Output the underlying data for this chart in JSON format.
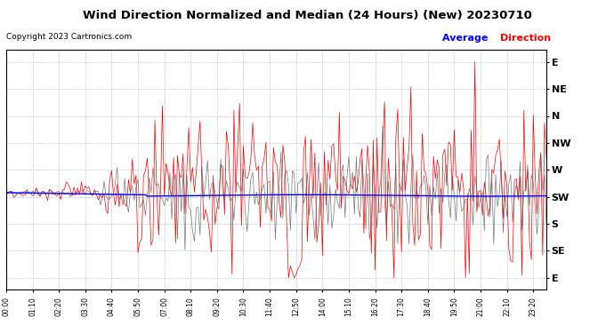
{
  "title": "Wind Direction Normalized and Median (24 Hours) (New) 20230710",
  "copyright": "Copyright 2023 Cartronics.com",
  "background_color": "#ffffff",
  "plot_bg_color": "#ffffff",
  "grid_color": "#aaaaaa",
  "title_fontsize": 9.5,
  "ytick_labels": [
    "E",
    "NE",
    "N",
    "NW",
    "W",
    "SW",
    "S",
    "SE",
    "E"
  ],
  "ytick_values": [
    0,
    45,
    90,
    135,
    180,
    225,
    270,
    315,
    360
  ],
  "ylim": [
    -20,
    380
  ],
  "n_points": 288,
  "red_line_color": "#ff0000",
  "blue_line_color": "#0000ff",
  "dark_line_color": "#555555",
  "x_tick_labels": [
    "00:00",
    "01:10",
    "02:20",
    "03:30",
    "04:40",
    "05:50",
    "07:00",
    "08:10",
    "09:20",
    "10:30",
    "11:40",
    "12:50",
    "14:00",
    "15:10",
    "16:20",
    "17:30",
    "18:40",
    "19:50",
    "21:00",
    "22:10",
    "23:20"
  ],
  "x_tick_positions": [
    0,
    14,
    28,
    42,
    56,
    70,
    84,
    98,
    112,
    126,
    140,
    154,
    168,
    182,
    196,
    210,
    224,
    238,
    252,
    266,
    280
  ]
}
